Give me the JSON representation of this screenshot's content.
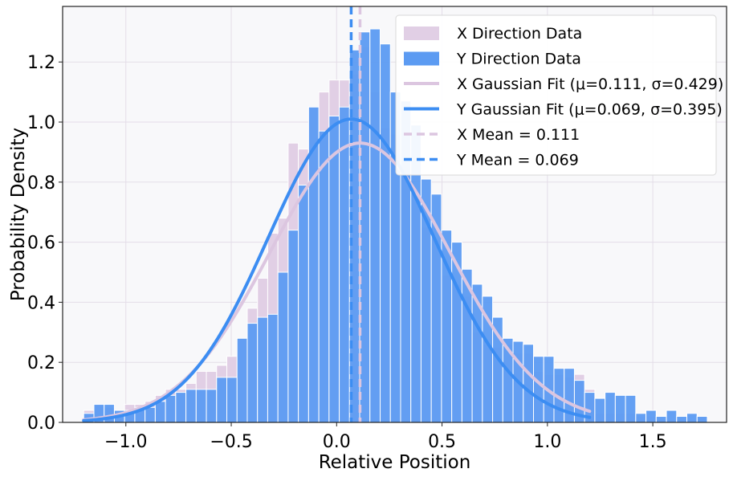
{
  "chart_data": {
    "type": "bar",
    "xlabel": "Relative Position",
    "ylabel": "Probability Density",
    "xlim": [
      -1.3,
      1.85
    ],
    "ylim": [
      0,
      1.385
    ],
    "xticks": [
      -1.0,
      -0.5,
      0.0,
      0.5,
      1.0,
      1.5
    ],
    "xtick_labels": [
      "−1.0",
      "−0.5",
      "0.0",
      "0.5",
      "1.0",
      "1.5"
    ],
    "yticks": [
      0.0,
      0.2,
      0.4,
      0.6,
      0.8,
      1.0,
      1.2
    ],
    "ytick_labels": [
      "0.0",
      "0.2",
      "0.4",
      "0.6",
      "0.8",
      "1.0",
      "1.2"
    ],
    "grid": true,
    "legend_position": "top-right",
    "colors": {
      "x_color": "#e1cfe5",
      "y_color": "#5c9bf2",
      "x_fit": "#dcc6e0",
      "y_fit": "#3c8df2",
      "plot_bg": "#f8f8fa",
      "grid": "#e4dde8"
    },
    "histograms": [
      {
        "name": "X Direction Data",
        "bin_start": -1.2,
        "bin_width": 0.0485,
        "values": [
          0.04,
          0.06,
          0.05,
          0.04,
          0.06,
          0.06,
          0.07,
          0.09,
          0.11,
          0.11,
          0.13,
          0.17,
          0.17,
          0.19,
          0.22,
          0.28,
          0.38,
          0.48,
          0.63,
          0.68,
          0.93,
          0.91,
          1.05,
          1.1,
          1.14,
          1.14,
          1.16,
          1.25,
          1.1,
          0.98,
          0.96,
          0.83,
          0.77,
          0.65,
          0.61,
          0.49,
          0.46,
          0.42,
          0.3,
          0.26,
          0.25,
          0.26,
          0.23,
          0.23,
          0.17,
          0.16,
          0.16,
          0.15,
          0.16,
          0.11,
          0.03,
          0.03,
          0.03,
          0.03,
          0.02,
          0.02,
          0.01,
          0.01,
          0.01,
          0.01,
          0.02
        ]
      },
      {
        "name": "Y Direction Data",
        "bin_start": -1.2,
        "bin_width": 0.0485,
        "values": [
          0.03,
          0.06,
          0.06,
          0.04,
          0.04,
          0.05,
          0.05,
          0.07,
          0.09,
          0.1,
          0.11,
          0.11,
          0.11,
          0.15,
          0.15,
          0.28,
          0.33,
          0.35,
          0.36,
          0.5,
          0.64,
          0.79,
          1.05,
          0.97,
          1.02,
          1.05,
          1.24,
          1.3,
          1.31,
          1.26,
          1.1,
          1.07,
          0.99,
          0.81,
          0.76,
          0.64,
          0.6,
          0.51,
          0.46,
          0.42,
          0.35,
          0.28,
          0.27,
          0.26,
          0.22,
          0.22,
          0.18,
          0.18,
          0.14,
          0.1,
          0.08,
          0.1,
          0.09,
          0.09,
          0.03,
          0.04,
          0.02,
          0.04,
          0.02,
          0.03,
          0.02
        ]
      }
    ],
    "fits": [
      {
        "name": "X Gaussian Fit (μ=0.111, σ=0.429)",
        "mu": 0.111,
        "sigma": 0.429,
        "x_range": [
          -1.2,
          1.2
        ]
      },
      {
        "name": "Y Gaussian Fit (μ=0.069, σ=0.395)",
        "mu": 0.069,
        "sigma": 0.395,
        "x_range": [
          -1.2,
          1.2
        ]
      }
    ],
    "means": [
      {
        "name": "X Mean = 0.111",
        "value": 0.111
      },
      {
        "name": "Y Mean = 0.069",
        "value": 0.069
      }
    ]
  }
}
